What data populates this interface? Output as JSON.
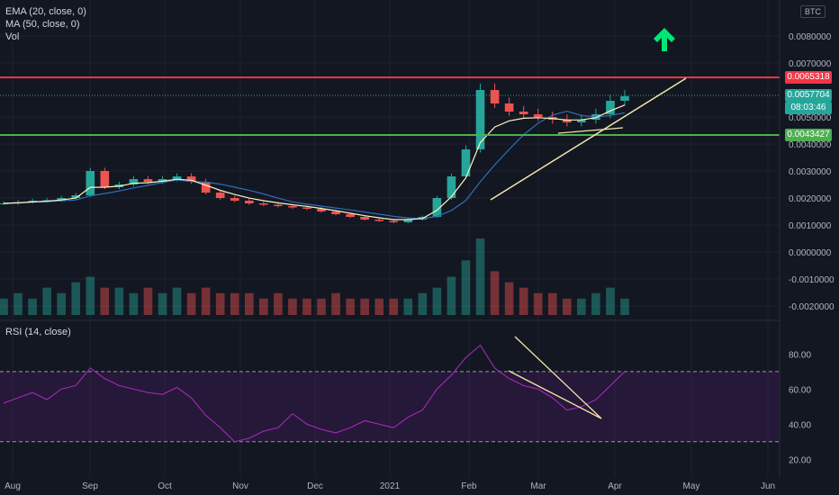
{
  "legend": {
    "ema": "EMA (20, close, 0)",
    "ma": "MA (50, close, 0)",
    "vol": "Vol",
    "rsi": "RSI (14, close)"
  },
  "currency_badge": "BTC",
  "badges": {
    "resistance": "0.0065318",
    "price": "0.0057704",
    "countdown": "08:03:46",
    "support": "0.0043427"
  },
  "colors": {
    "resistance": "#f23645",
    "support": "#4caf50",
    "price": "#26a69a",
    "up": "#26a69a",
    "down": "#ef5350",
    "ema": "#fff3c4",
    "ma": "#2f6fb5",
    "rsi": "#9c27b0",
    "trendline": "#f5e6a8",
    "arrow": "#00e676"
  },
  "icons": [
    "up-arrow-icon"
  ],
  "chart_data": [
    {
      "type": "candlestick",
      "panel": "price",
      "yticks": [
        "0.0080000",
        "0.0070000",
        "0.0050000",
        "0.0040000",
        "0.0030000",
        "0.0020000",
        "0.0010000",
        "0.0000000",
        "-0.0010000",
        "-0.0020000"
      ],
      "xticks": [
        "Aug",
        "Sep",
        "Oct",
        "Nov",
        "Dec",
        "2021",
        "Feb",
        "Mar",
        "Apr",
        "May",
        "Jun"
      ],
      "x": [
        0,
        7,
        14,
        21,
        28,
        35,
        42,
        49,
        56,
        63,
        70,
        77,
        84,
        91,
        98,
        105,
        112,
        119,
        126,
        133,
        140,
        147,
        154,
        161,
        168,
        175,
        182,
        189,
        196,
        203,
        210,
        217,
        224,
        231,
        238,
        245,
        252,
        259,
        266,
        273,
        280,
        287,
        294,
        301
      ],
      "close": [
        0.0018,
        0.00185,
        0.0019,
        0.00192,
        0.002,
        0.0021,
        0.003,
        0.0024,
        0.0025,
        0.0027,
        0.0026,
        0.0027,
        0.0028,
        0.0026,
        0.0022,
        0.002,
        0.0019,
        0.0018,
        0.00175,
        0.0017,
        0.00165,
        0.0016,
        0.0015,
        0.0014,
        0.0013,
        0.0012,
        0.00115,
        0.0011,
        0.0012,
        0.0013,
        0.002,
        0.0028,
        0.0038,
        0.006,
        0.0055,
        0.0052,
        0.0051,
        0.005,
        0.0049,
        0.0048,
        0.0049,
        0.0051,
        0.0056,
        0.00577
      ],
      "ema20_note": "",
      "horizontal_lines": [
        0.0065318,
        0.0043427
      ],
      "current_price": 0.0057704
    },
    {
      "type": "bar",
      "panel": "volume",
      "series_name": "Vol",
      "values": [
        3,
        4,
        3,
        5,
        4,
        6,
        7,
        5,
        5,
        4,
        5,
        4,
        5,
        4,
        5,
        4,
        4,
        4,
        3,
        4,
        3,
        3,
        3,
        4,
        3,
        3,
        3,
        3,
        3,
        4,
        5,
        7,
        10,
        14,
        8,
        6,
        5,
        4,
        4,
        3,
        3,
        4,
        5,
        3
      ]
    },
    {
      "type": "line",
      "panel": "rsi",
      "yticks": [
        "80.00",
        "60.00",
        "40.00",
        "20.00"
      ],
      "ylim": [
        15,
        92
      ],
      "bands": [
        70,
        30
      ],
      "values": [
        52,
        55,
        58,
        54,
        60,
        62,
        72,
        66,
        62,
        60,
        58,
        57,
        61,
        55,
        45,
        38,
        30,
        32,
        36,
        38,
        46,
        40,
        37,
        35,
        38,
        42,
        40,
        38,
        44,
        48,
        60,
        68,
        78,
        85,
        72,
        66,
        62,
        60,
        55,
        48,
        50,
        54,
        62,
        70
      ]
    }
  ]
}
